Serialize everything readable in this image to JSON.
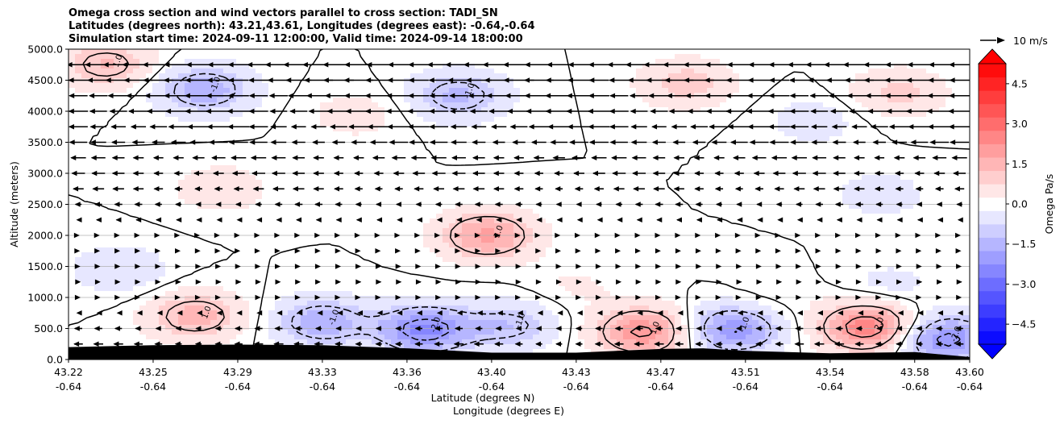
{
  "chart_data": {
    "type": "heatmap",
    "title_lines": [
      "Omega cross section and wind vectors parallel to cross section: TADI_SN",
      "Latitudes (degrees north): 43.21,43.61, Longitudes (degrees east): -0.64,-0.64",
      "Simulation start time: 2024-09-11 12:00:00, Valid time: 2024-09-14 18:00:00"
    ],
    "ylabel": "Altitude (meters)",
    "xlabel_lat": "Latitude (degrees N)",
    "xlabel_lon": "Longitude (degrees E)",
    "ylim": [
      0,
      5000
    ],
    "y_ticks": [
      "0.0",
      "500.0",
      "1000.0",
      "1500.0",
      "2000.0",
      "2500.0",
      "3000.0",
      "3500.0",
      "4000.0",
      "4500.0",
      "5000.0"
    ],
    "y_tick_values": [
      0,
      500,
      1000,
      1500,
      2000,
      2500,
      3000,
      3500,
      4000,
      4500,
      5000
    ],
    "x_lat_ticks": [
      "43.22",
      "43.25",
      "43.29",
      "43.33",
      "43.36",
      "43.40",
      "43.43",
      "43.47",
      "43.51",
      "43.54",
      "43.58",
      "43.60"
    ],
    "x_lon_ticks": [
      "-0.64",
      "-0.64",
      "-0.64",
      "-0.64",
      "-0.64",
      "-0.64",
      "-0.64",
      "-0.64",
      "-0.64",
      "-0.64",
      "-0.64",
      "-0.64"
    ],
    "x_tick_positions": [
      0,
      1,
      2,
      3,
      4,
      5,
      6,
      7,
      8,
      9,
      10,
      10.65
    ],
    "x_range": [
      0,
      10.65
    ],
    "grid": "horizontal",
    "colorbar": {
      "label": "Omega Pa/s",
      "range": [
        -5.25,
        5.25
      ],
      "step": 0.5,
      "tick_labels": [
        "4.5",
        "3.0",
        "1.5",
        "0.0",
        "−1.5",
        "−3.0",
        "−4.5"
      ],
      "tick_values": [
        4.5,
        3.0,
        1.5,
        0.0,
        -1.5,
        -3.0,
        -4.5
      ],
      "colormap": "bwr"
    },
    "wind_key": {
      "label": "10 m/s"
    },
    "contour_levels": [
      -2.0,
      -1.0,
      0.0,
      1.0,
      2.0
    ],
    "omega_features": [
      {
        "x": 0.45,
        "y": 4750,
        "value": 1.3
      },
      {
        "x": 1.6,
        "y": 4350,
        "value": -1.6
      },
      {
        "x": 4.6,
        "y": 4250,
        "value": -1.4
      },
      {
        "x": 3.4,
        "y": 3950,
        "value": 0.5
      },
      {
        "x": 7.3,
        "y": 4450,
        "value": 1.0
      },
      {
        "x": 9.8,
        "y": 4300,
        "value": 0.9
      },
      {
        "x": 8.8,
        "y": 3850,
        "value": -0.5
      },
      {
        "x": 1.8,
        "y": 2750,
        "value": 0.6
      },
      {
        "x": 9.6,
        "y": 2650,
        "value": -0.5
      },
      {
        "x": 4.95,
        "y": 2000,
        "value": 1.9
      },
      {
        "x": 0.6,
        "y": 1450,
        "value": -0.7
      },
      {
        "x": 1.5,
        "y": 700,
        "value": 1.5
      },
      {
        "x": 3.0,
        "y": 600,
        "value": -1.6
      },
      {
        "x": 4.2,
        "y": 480,
        "value": -2.4
      },
      {
        "x": 5.2,
        "y": 550,
        "value": -1.2
      },
      {
        "x": 6.8,
        "y": 450,
        "value": 2.2
      },
      {
        "x": 7.85,
        "y": 480,
        "value": -2.1
      },
      {
        "x": 9.45,
        "y": 520,
        "value": 2.6
      },
      {
        "x": 10.35,
        "y": 330,
        "value": -2.3
      },
      {
        "x": 6.0,
        "y": 1200,
        "value": 0.3
      },
      {
        "x": 8.3,
        "y": 1000,
        "value": 0.2
      },
      {
        "x": 9.7,
        "y": 1200,
        "value": -0.4
      }
    ],
    "wind_profile": [
      {
        "altitude": 4750,
        "u": -8.5
      },
      {
        "altitude": 4500,
        "u": -8.0
      },
      {
        "altitude": 4250,
        "u": -7.5
      },
      {
        "altitude": 4000,
        "u": -7.0
      },
      {
        "altitude": 3750,
        "u": -6.0
      },
      {
        "altitude": 3500,
        "u": -5.0
      },
      {
        "altitude": 3250,
        "u": -4.0
      },
      {
        "altitude": 3000,
        "u": -3.5
      },
      {
        "altitude": 2750,
        "u": -3.0
      },
      {
        "altitude": 2500,
        "u": -2.0
      },
      {
        "altitude": 2250,
        "u": -1.2
      },
      {
        "altitude": 2000,
        "u": 0.3
      },
      {
        "altitude": 1750,
        "u": 0.6
      },
      {
        "altitude": 1500,
        "u": 0.8
      },
      {
        "altitude": 1250,
        "u": 1.0
      },
      {
        "altitude": 1000,
        "u": 0.7
      },
      {
        "altitude": 750,
        "u": -0.8
      },
      {
        "altitude": 500,
        "u": -2.0
      },
      {
        "altitude": 250,
        "u": -2.5
      }
    ],
    "terrain": [
      {
        "x": 0,
        "altitude": 200
      },
      {
        "x": 1,
        "altitude": 230
      },
      {
        "x": 2,
        "altitude": 240
      },
      {
        "x": 3,
        "altitude": 230
      },
      {
        "x": 4,
        "altitude": 180
      },
      {
        "x": 5,
        "altitude": 110
      },
      {
        "x": 6,
        "altitude": 110
      },
      {
        "x": 7,
        "altitude": 170
      },
      {
        "x": 7.5,
        "altitude": 180
      },
      {
        "x": 8,
        "altitude": 140
      },
      {
        "x": 9,
        "altitude": 100
      },
      {
        "x": 10,
        "altitude": 120
      },
      {
        "x": 10.65,
        "altitude": 40
      }
    ]
  }
}
